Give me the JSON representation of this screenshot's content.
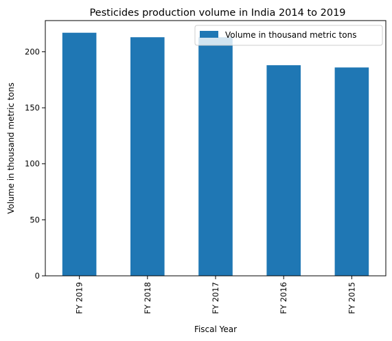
{
  "chart_data": {
    "type": "bar",
    "title": "Pesticides production volume in India 2014 to 2019",
    "xlabel": "Fiscal Year",
    "ylabel": "Volume in thousand metric tons",
    "categories": [
      "FY 2019",
      "FY 2018",
      "FY 2017",
      "FY 2016",
      "FY 2015"
    ],
    "series": [
      {
        "name": "Volume in thousand metric tons",
        "values": [
          217,
          213,
          213,
          188,
          186
        ],
        "color": "#1f77b4"
      }
    ],
    "ylim": [
      0,
      227.85
    ],
    "yticks": [
      0,
      50,
      100,
      150,
      200
    ],
    "grid": false,
    "legend": "top-right"
  }
}
